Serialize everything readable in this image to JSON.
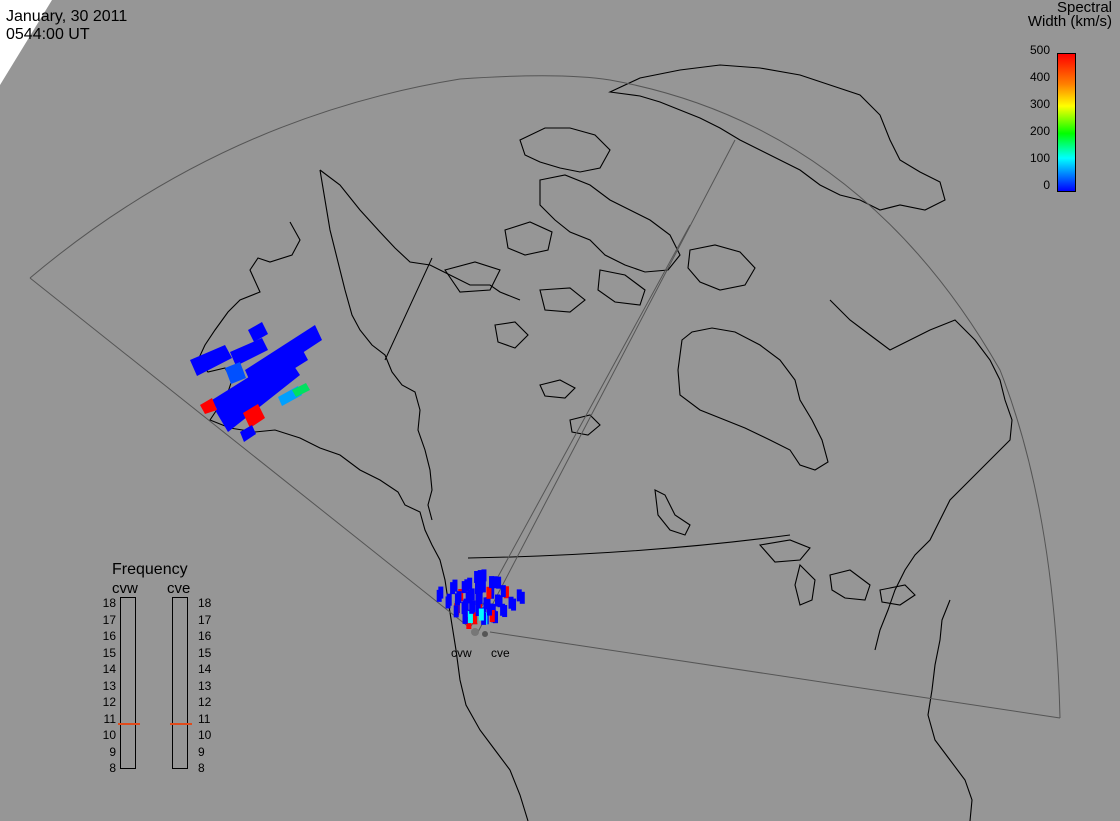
{
  "header": {
    "date": "January, 30 2011",
    "time": "0544:00 UT"
  },
  "colorbar": {
    "title_line1": "Spectral",
    "title_line2": "Width (km/s)",
    "ticks": [
      "500",
      "400",
      "300",
      "200",
      "100",
      "0"
    ]
  },
  "frequency_panel": {
    "title": "Frequency",
    "columns": [
      {
        "name": "cvw",
        "marker_mhz": 10.8
      },
      {
        "name": "cve",
        "marker_mhz": 10.8
      }
    ],
    "scale": [
      "18",
      "17",
      "16",
      "15",
      "14",
      "13",
      "12",
      "11",
      "10",
      "9",
      "8"
    ]
  },
  "radars": {
    "west": "cvw",
    "east": "cve"
  },
  "colors": {
    "background": "#969696",
    "low_width": "#0000ff",
    "high_width": "#ff0000",
    "coast": "#000000",
    "field_of_view": "#555555"
  }
}
